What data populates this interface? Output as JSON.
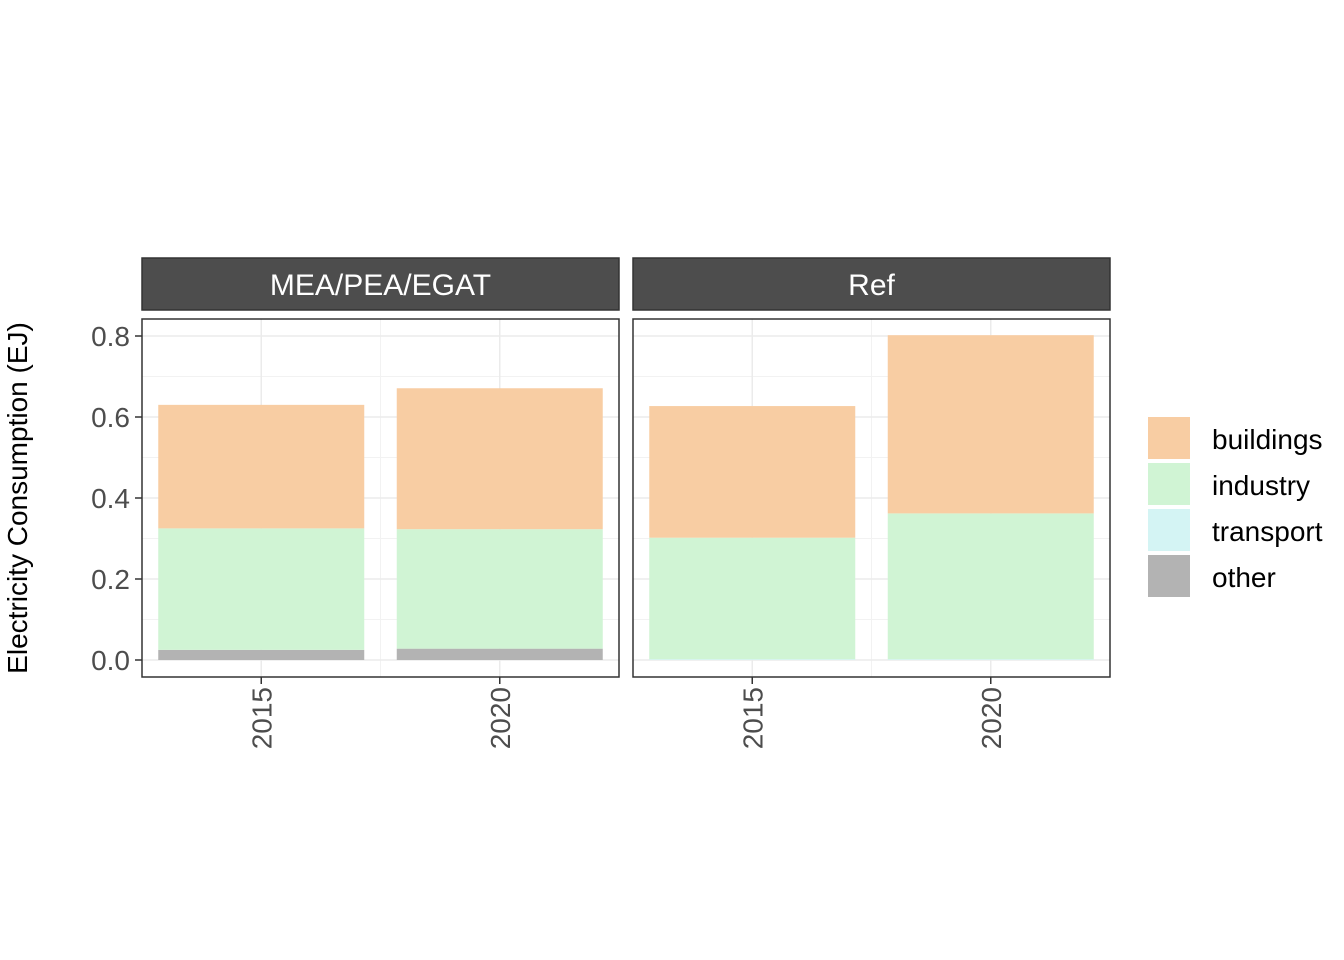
{
  "chart_data": {
    "type": "bar",
    "stacked": true,
    "ylabel": "Electricity Consumption (EJ)",
    "xlabel": "",
    "ylim": [
      0,
      0.8
    ],
    "yticks": [
      "0.0",
      "0.2",
      "0.4",
      "0.6",
      "0.8"
    ],
    "ytick_values": [
      0,
      0.2,
      0.4,
      0.6,
      0.8
    ],
    "categories": [
      "2015",
      "2020"
    ],
    "grid": true,
    "legend_position": "right",
    "series": [
      {
        "name": "buildings",
        "color": "#F8CDA3"
      },
      {
        "name": "industry",
        "color": "#D0F4D4"
      },
      {
        "name": "transport",
        "color": "#D4F4F4"
      },
      {
        "name": "other",
        "color": "#B3B3B3"
      }
    ],
    "facets": [
      {
        "label": "MEA/PEA/EGAT",
        "values": {
          "buildings": [
            0.305,
            0.348
          ],
          "industry": [
            0.3,
            0.295
          ],
          "transport": [
            0.0,
            0.0
          ],
          "other": [
            0.025,
            0.028
          ]
        }
      },
      {
        "label": "Ref",
        "values": {
          "buildings": [
            0.325,
            0.44
          ],
          "industry": [
            0.3,
            0.36
          ],
          "transport": [
            0.002,
            0.002
          ],
          "other": [
            0.0,
            0.0
          ]
        }
      }
    ]
  }
}
